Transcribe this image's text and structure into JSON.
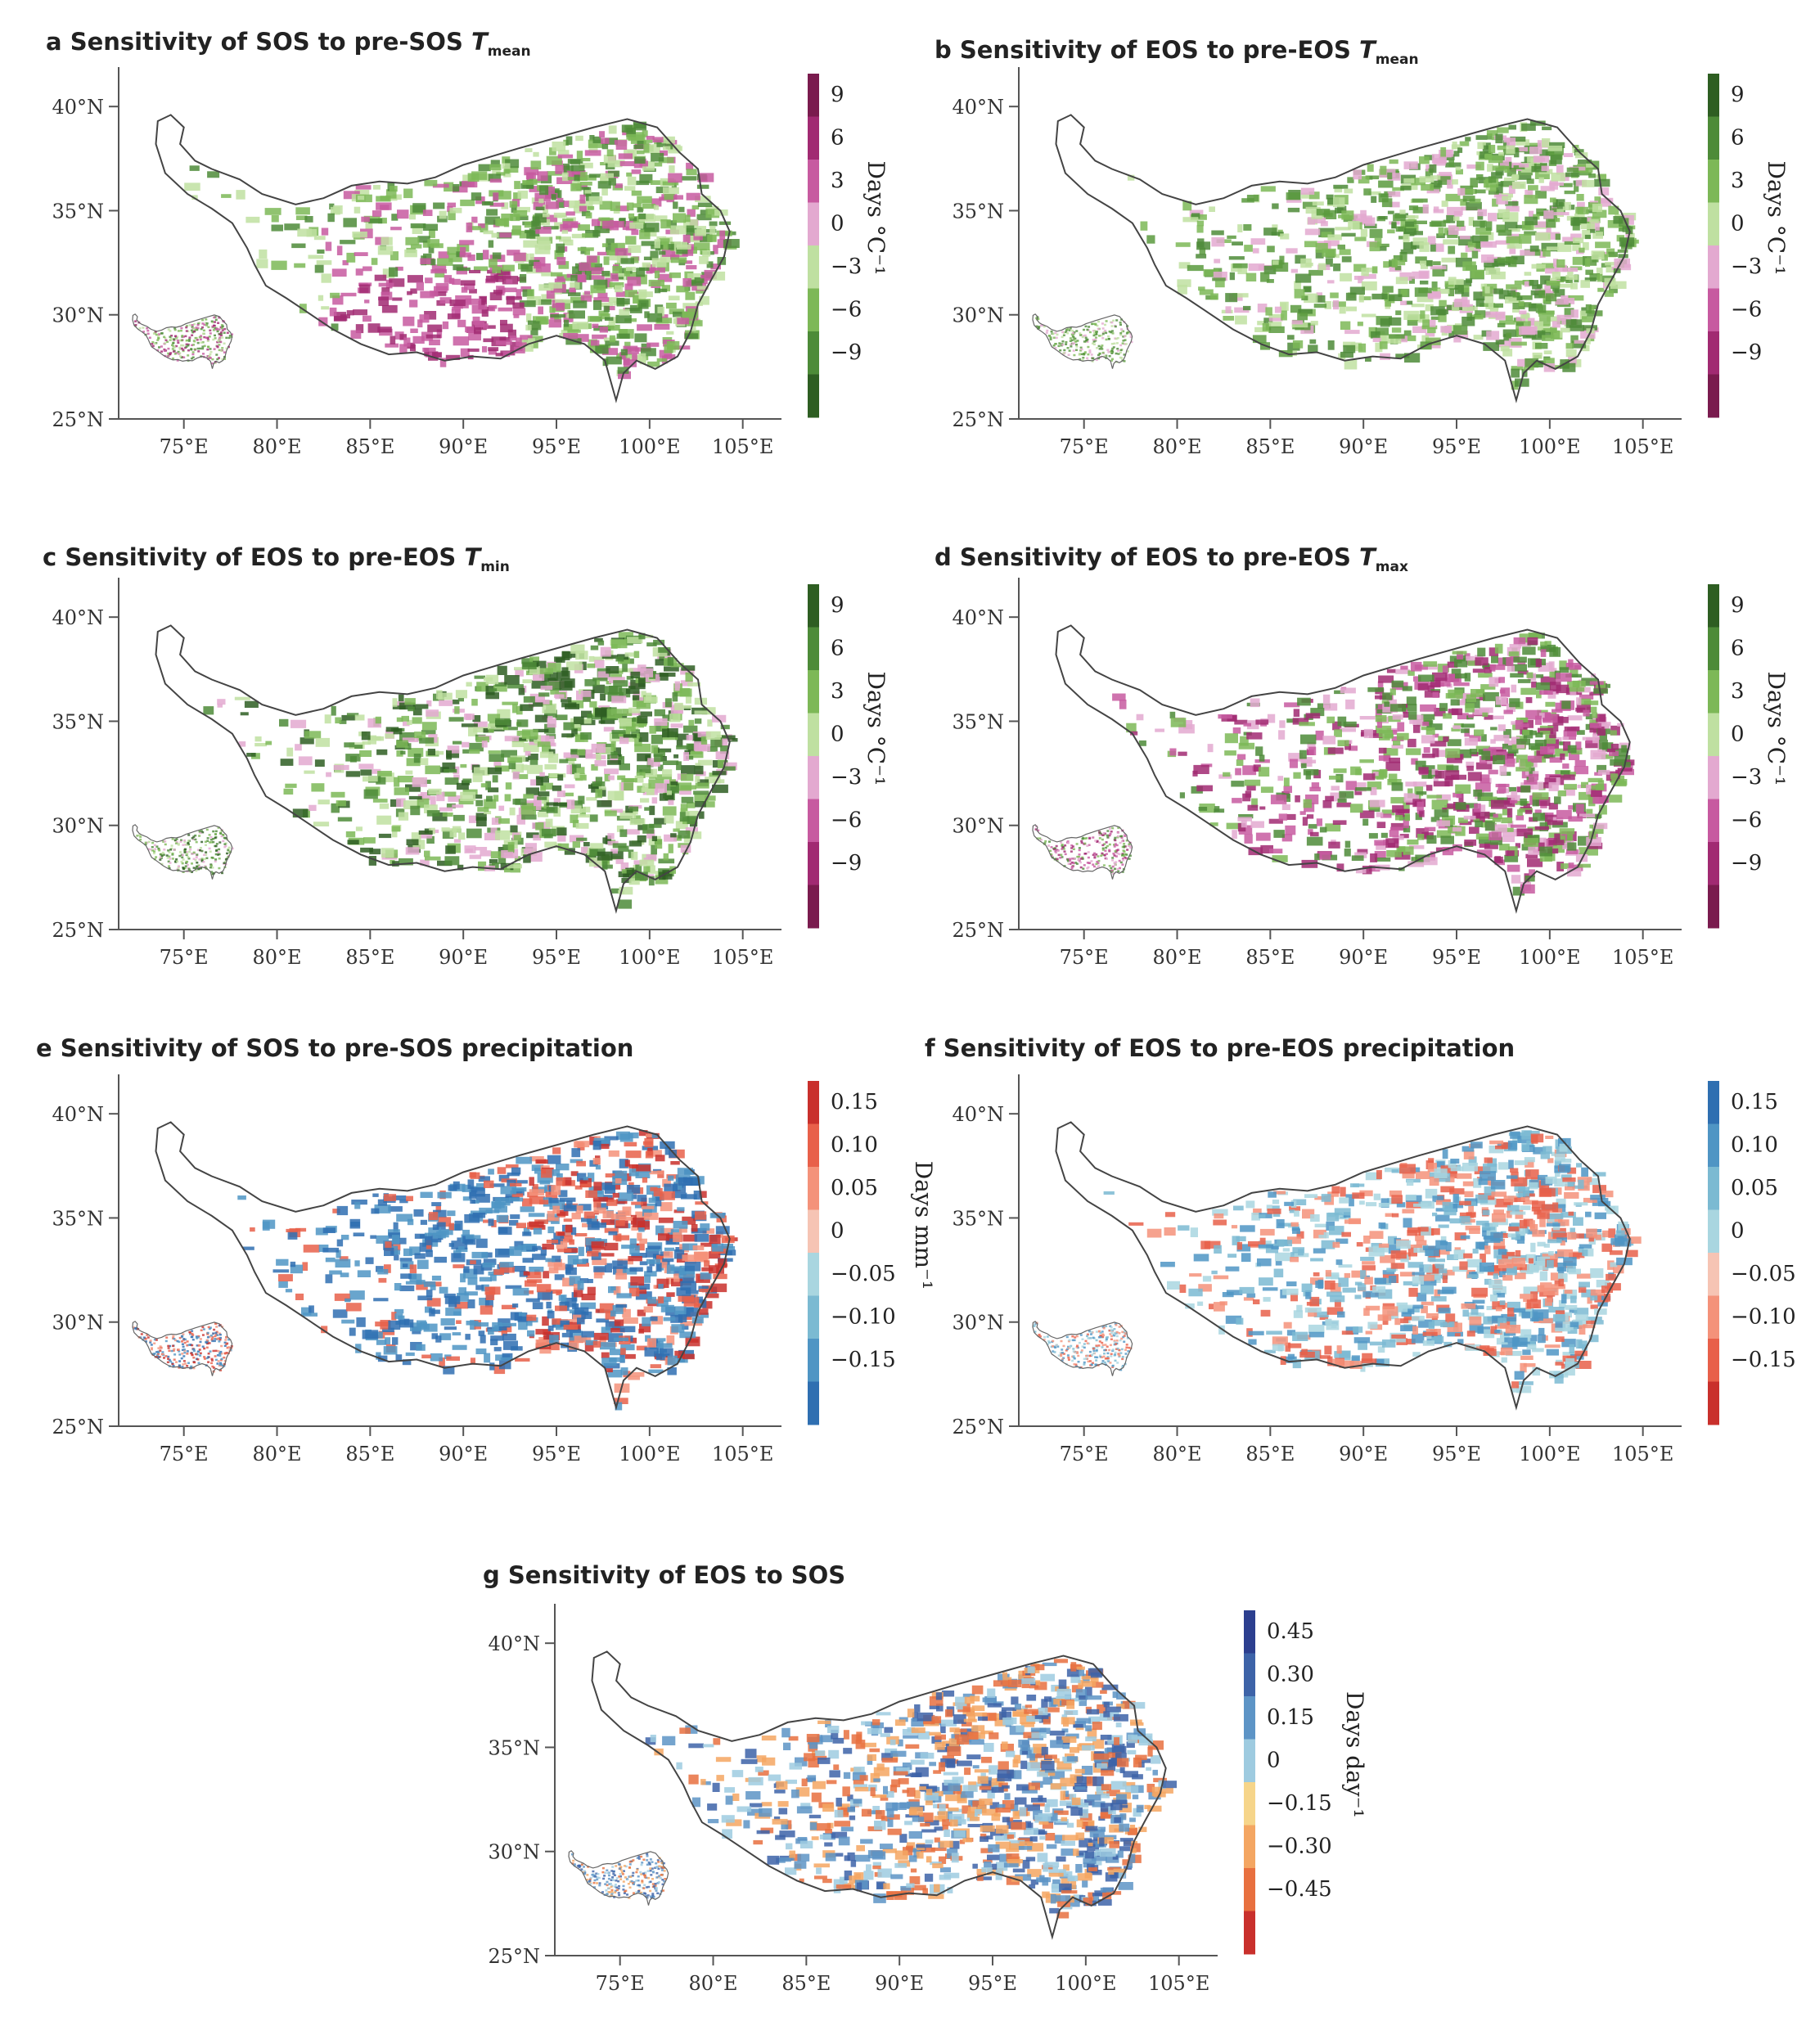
{
  "panels": [
    {
      "id": "a",
      "letter": "a",
      "title": "Sensitivity of SOS to pre-SOS ",
      "tvar": "T",
      "tsub": "mean",
      "cbar_label": "Days °C⁻¹",
      "cbar_ticks": [
        "9",
        "6",
        "3",
        "0",
        "−3",
        "−6",
        "−9"
      ],
      "cbar_colors": [
        "#7a1b4e",
        "#a12a72",
        "#c75aa0",
        "#e3a9d0",
        "#bfe0a1",
        "#7db857",
        "#4d8b38",
        "#2e5e22"
      ],
      "map_palette": [
        "#4d8b38",
        "#7db857",
        "#bfe0a1",
        "#c75aa0",
        "#a12a72"
      ]
    },
    {
      "id": "b",
      "letter": "b",
      "title": "Sensitivity of EOS to pre-EOS ",
      "tvar": "T",
      "tsub": "mean",
      "cbar_label": "Days °C⁻¹",
      "cbar_ticks": [
        "9",
        "6",
        "3",
        "0",
        "−3",
        "−6",
        "−9"
      ],
      "cbar_colors": [
        "#2e5e22",
        "#4d8b38",
        "#7db857",
        "#bfe0a1",
        "#e3a9d0",
        "#c75aa0",
        "#a12a72",
        "#7a1b4e"
      ],
      "map_palette": [
        "#4d8b38",
        "#7db857",
        "#bfe0a1",
        "#5a9a3e",
        "#e3a9d0"
      ]
    },
    {
      "id": "c",
      "letter": "c",
      "title": "Sensitivity of EOS to pre-EOS ",
      "tvar": "T",
      "tsub": "min",
      "cbar_label": "Days °C⁻¹",
      "cbar_ticks": [
        "9",
        "6",
        "3",
        "0",
        "−3",
        "−6",
        "−9"
      ],
      "cbar_colors": [
        "#2e5e22",
        "#4d8b38",
        "#7db857",
        "#bfe0a1",
        "#e3a9d0",
        "#c75aa0",
        "#a12a72",
        "#7a1b4e"
      ],
      "map_palette": [
        "#4d8b38",
        "#7db857",
        "#bfe0a1",
        "#2e5e22",
        "#e3a9d0"
      ]
    },
    {
      "id": "d",
      "letter": "d",
      "title": "Sensitivity of EOS to pre-EOS ",
      "tvar": "T",
      "tsub": "max",
      "cbar_label": "Days °C⁻¹",
      "cbar_ticks": [
        "9",
        "6",
        "3",
        "0",
        "−3",
        "−6",
        "−9"
      ],
      "cbar_colors": [
        "#2e5e22",
        "#4d8b38",
        "#7db857",
        "#bfe0a1",
        "#e3a9d0",
        "#c75aa0",
        "#a12a72",
        "#7a1b4e"
      ],
      "map_palette": [
        "#c75aa0",
        "#a12a72",
        "#e3a9d0",
        "#7db857",
        "#4d8b38"
      ]
    },
    {
      "id": "e",
      "letter": "e",
      "title": "Sensitivity of SOS to pre-SOS precipitation",
      "tvar": "",
      "tsub": "",
      "cbar_label": "Days mm⁻¹",
      "cbar_ticks": [
        "0.15",
        "0.10",
        "0.05",
        "0",
        "−0.05",
        "−0.10",
        "−0.15"
      ],
      "cbar_colors": [
        "#c9302c",
        "#e8604a",
        "#f4927a",
        "#f6c4b4",
        "#a9d6e0",
        "#7bbad2",
        "#4f95c4",
        "#2f6fb1"
      ],
      "map_palette": [
        "#2f6fb1",
        "#4f95c4",
        "#e8604a",
        "#c9302c",
        "#f4927a"
      ]
    },
    {
      "id": "f",
      "letter": "f",
      "title": "Sensitivity of EOS to pre-EOS precipitation",
      "tvar": "",
      "tsub": "",
      "cbar_label": "Days mm⁻¹",
      "cbar_ticks": [
        "0.15",
        "0.10",
        "0.05",
        "0",
        "−0.05",
        "−0.10",
        "−0.15"
      ],
      "cbar_colors": [
        "#2f6fb1",
        "#4f95c4",
        "#7bbad2",
        "#a9d6e0",
        "#f6c4b4",
        "#f4927a",
        "#e8604a",
        "#c9302c"
      ],
      "map_palette": [
        "#a9d6e0",
        "#7bbad2",
        "#e8604a",
        "#f4927a",
        "#4f95c4"
      ]
    },
    {
      "id": "g",
      "letter": "g",
      "title": "Sensitivity of EOS to SOS",
      "tvar": "",
      "tsub": "",
      "cbar_label": "Days day⁻¹",
      "cbar_ticks": [
        "0.45",
        "0.30",
        "0.15",
        "0",
        "−0.15",
        "−0.30",
        "−0.45"
      ],
      "cbar_colors": [
        "#2c3f8f",
        "#3d63a8",
        "#5d94c6",
        "#9ecbe0",
        "#f6d58a",
        "#f4a662",
        "#e8703f",
        "#c9302c"
      ],
      "map_palette": [
        "#5d94c6",
        "#3d63a8",
        "#f4a662",
        "#e8703f",
        "#9ecbe0"
      ]
    }
  ],
  "axes": {
    "lat_labels": [
      "40°N",
      "35°N",
      "30°N",
      "25°N"
    ],
    "lon_labels": [
      "75°E",
      "80°E",
      "85°E",
      "90°E",
      "95°E",
      "100°E",
      "105°E"
    ]
  }
}
